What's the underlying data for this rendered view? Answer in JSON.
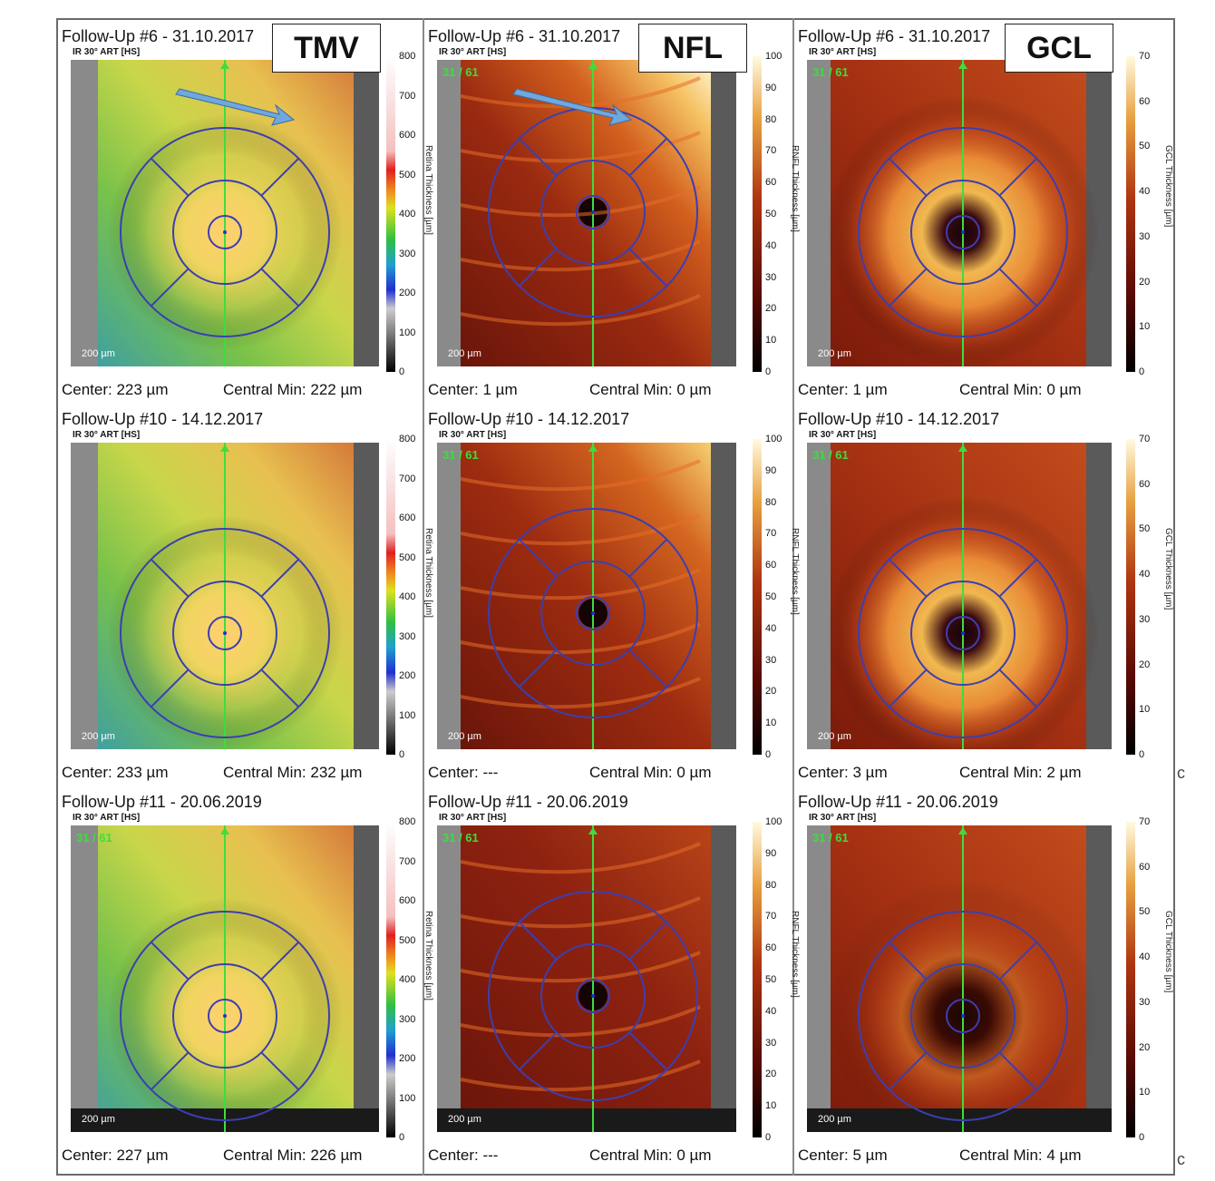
{
  "columns": [
    {
      "id": "tmv",
      "badge": "TMV",
      "scale_ticks": [
        "800",
        "700",
        "600",
        "500",
        "400",
        "300",
        "200",
        "100",
        "0"
      ],
      "axis_label": "Retina Thickness [µm]",
      "colormap": "rainbow",
      "panels": [
        {
          "title": "Follow-Up #6 - 31.10.2017",
          "subtitle": "IR 30° ART [HS]",
          "scan_index": "",
          "scale_bar": "200 µm",
          "center": "Center: 223 µm",
          "central_min": "Central Min: 222 µm"
        },
        {
          "title": "Follow-Up #10 - 14.12.2017",
          "subtitle": "IR 30° ART [HS]",
          "scan_index": "",
          "scale_bar": "200 µm",
          "center": "Center: 233 µm",
          "central_min": "Central Min: 232 µm"
        },
        {
          "title": "Follow-Up #11 - 20.06.2019",
          "subtitle": "IR 30° ART [HS]",
          "scan_index": "31 / 61",
          "scale_bar": "200 µm",
          "center": "Center: 227 µm",
          "central_min": "Central Min: 226 µm"
        }
      ]
    },
    {
      "id": "nfl",
      "badge": "NFL",
      "scale_ticks": [
        "100",
        "90",
        "80",
        "70",
        "60",
        "50",
        "40",
        "30",
        "20",
        "10",
        "0"
      ],
      "axis_label": "RNFL Thickness [µm]",
      "colormap": "hot",
      "panels": [
        {
          "title": "Follow-Up #6 - 31.10.2017",
          "subtitle": "IR 30° ART [HS]",
          "scan_index": "31 / 61",
          "scale_bar": "200 µm",
          "center": "Center: 1 µm",
          "central_min": "Central Min: 0 µm"
        },
        {
          "title": "Follow-Up #10 - 14.12.2017",
          "subtitle": "IR 30° ART [HS]",
          "scan_index": "31 / 61",
          "scale_bar": "200 µm",
          "center": "Center: ---",
          "central_min": "Central Min: 0 µm"
        },
        {
          "title": "Follow-Up #11 - 20.06.2019",
          "subtitle": "IR 30° ART [HS]",
          "scan_index": "31 / 61",
          "scale_bar": "200 µm",
          "center": "Center: ---",
          "central_min": "Central Min: 0 µm"
        }
      ]
    },
    {
      "id": "gcl",
      "badge": "GCL",
      "scale_ticks": [
        "70",
        "60",
        "50",
        "40",
        "30",
        "20",
        "10",
        "0"
      ],
      "axis_label": "GCL Thickness [µm]",
      "colormap": "hot",
      "panels": [
        {
          "title": "Follow-Up #6 - 31.10.2017",
          "subtitle": "IR 30° ART [HS]",
          "scan_index": "31 / 61",
          "scale_bar": "200 µm",
          "center": "Center: 1 µm",
          "central_min": "Central Min: 0 µm"
        },
        {
          "title": "Follow-Up #10 - 14.12.2017",
          "subtitle": "IR 30° ART [HS]",
          "scan_index": "31 / 61",
          "scale_bar": "200 µm",
          "center": "Center: 3 µm",
          "central_min": "Central Min: 2 µm"
        },
        {
          "title": "Follow-Up #11 - 20.06.2019",
          "subtitle": "IR 30° ART [HS]",
          "scan_index": "31 / 61",
          "scale_bar": "200 µm",
          "center": "Center: 5 µm",
          "central_min": "Central Min: 4 µm"
        }
      ]
    }
  ],
  "crop_marks": [
    "c",
    "c"
  ],
  "colors": {
    "grid_circles": "#3b3fb0",
    "center_line": "#3fdc3f",
    "arrow": "#6fa8dc",
    "tmv_base": "#8fca4a",
    "hot_dark": "#7a1a0a",
    "hot_light": "#fff3b0"
  }
}
